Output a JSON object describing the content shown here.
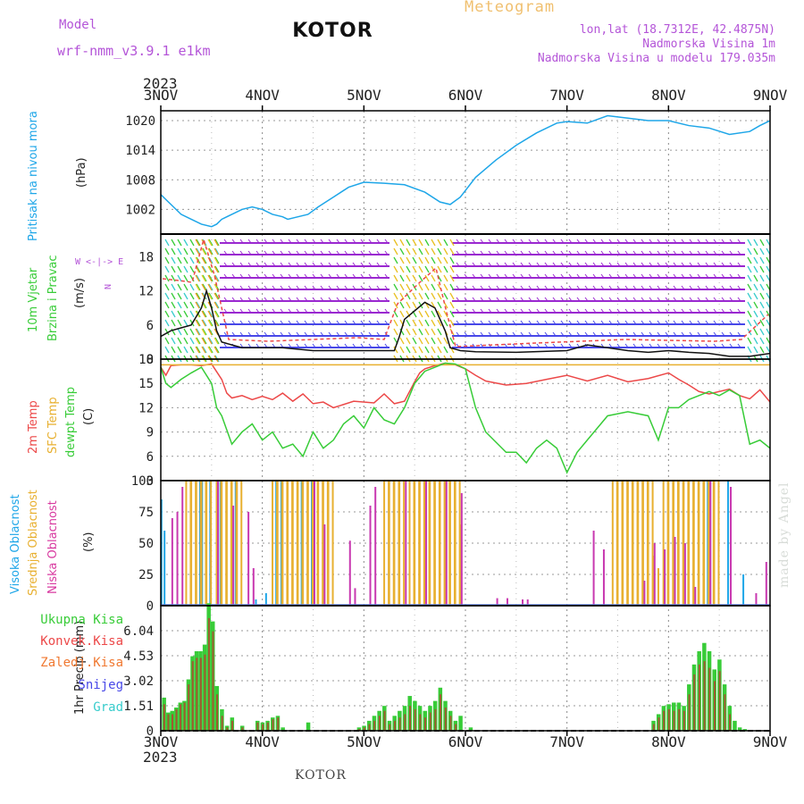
{
  "header": {
    "model_label": "Model",
    "model_name": "wrf-nmm_v3.9.1 e1km",
    "title": "KOTOR",
    "meteogram_label": "Meteogram",
    "lonlat": "lon,lat (18.7312E, 42.4875N)",
    "elevation": "Nadmorska Visina 1m",
    "model_elevation": "Nadmorska Visina u modelu 179.035m",
    "year_top": "2023",
    "year_bottom": "2023",
    "footer_location": "KOTOR",
    "made_by": "made by Angel"
  },
  "time_axis": {
    "labels": [
      "3NOV",
      "4NOV",
      "5NOV",
      "6NOV",
      "7NOV",
      "8NOV",
      "9NOV"
    ]
  },
  "colors": {
    "pressure": "#1ea6e8",
    "temp2m": "#ec4848",
    "sfc": "#e8b030",
    "dewpt": "#38cc38",
    "conv": "#e84848",
    "total": "#38cc38",
    "wind_purple": "#9a28d0",
    "wind_blue": "#4848e8"
  },
  "panel_labels": {
    "pressure": [
      "Pritisak na nivou mora",
      "(hPa)"
    ],
    "wind": [
      "10m Vjetar",
      "Brzina i Pravac",
      "(m/s)"
    ],
    "compass": [
      "N",
      "W  <-|->  E",
      "S"
    ],
    "temp": [
      "2m Temp",
      "SFC Temp",
      "dewpt Temp",
      "(C)"
    ],
    "cloud": [
      "Visoka Oblacnost",
      "Srednja Oblacnost",
      "Niska Oblacnost",
      "(%)"
    ],
    "precip_unit": "1hr Precip (mm)",
    "precip_legend": [
      "Ukupna Kisa",
      "Konvek.Kisa",
      "Zaledj.Kisa",
      "Snijeg",
      "Grad"
    ]
  },
  "chart_data": [
    {
      "type": "line",
      "title": "Pritisak na nivou mora",
      "ylabel": "(hPa)",
      "ylim": [
        997,
        1022
      ],
      "yticks": [
        1002,
        1008,
        1014,
        1020
      ],
      "x_unit": "days from 3NOV 00UTC",
      "xlim": [
        0,
        6
      ],
      "series": [
        {
          "x": [
            0,
            0.1,
            0.2,
            0.3,
            0.4,
            0.5,
            0.55,
            0.6,
            0.7,
            0.8,
            0.9,
            1.0,
            1.1,
            1.2,
            1.25,
            1.35,
            1.45,
            1.55,
            1.7,
            1.85,
            2.0,
            2.2,
            2.4,
            2.6,
            2.75,
            2.85,
            2.95,
            3.1,
            3.3,
            3.5,
            3.7,
            3.9,
            4.0,
            4.2,
            4.4,
            4.6,
            4.8,
            5.0,
            5.2,
            5.4,
            5.6,
            5.8,
            5.9,
            6.0
          ],
          "y": [
            1005,
            1003,
            1001,
            1000,
            999,
            998.5,
            999,
            1000,
            1001,
            1002,
            1002.5,
            1002,
            1001,
            1000.5,
            1000,
            1000.5,
            1001,
            1002.5,
            1004.5,
            1006.5,
            1007.5,
            1007.3,
            1007,
            1005.5,
            1003.5,
            1003,
            1004.5,
            1008.5,
            1012,
            1015,
            1017.5,
            1019.5,
            1019.8,
            1019.5,
            1021,
            1020.5,
            1020,
            1020,
            1019,
            1018.5,
            1017.2,
            1017.8,
            1019,
            1020
          ]
        }
      ]
    },
    {
      "type": "line",
      "title": "10m Vjetar Brzina i Pravac",
      "ylabel": "(m/s)",
      "ylim": [
        0,
        22
      ],
      "yticks": [
        0,
        6,
        12,
        18
      ],
      "series": [
        {
          "name": "speed",
          "x": [
            0,
            0.1,
            0.2,
            0.3,
            0.4,
            0.45,
            0.5,
            0.55,
            0.6,
            0.7,
            0.8,
            1.0,
            1.2,
            1.5,
            2.0,
            2.3,
            2.35,
            2.4,
            2.5,
            2.6,
            2.7,
            2.8,
            2.85,
            2.95,
            3.1,
            3.5,
            4.0,
            4.2,
            4.4,
            4.6,
            4.8,
            5.0,
            5.2,
            5.4,
            5.6,
            5.8,
            6.0
          ],
          "y": [
            4,
            5,
            5.5,
            6,
            9,
            12,
            9,
            5,
            3,
            2.5,
            2,
            2,
            2,
            1.5,
            1.5,
            1.5,
            4,
            7,
            8.5,
            10,
            9,
            5,
            2,
            1.5,
            1.3,
            1.2,
            1.5,
            2.5,
            2,
            1.5,
            1.2,
            1.5,
            1.2,
            1,
            0.5,
            0.5,
            1
          ]
        }
      ]
    },
    {
      "type": "line",
      "title": "2m Temp / SFC Temp / dewpt Temp",
      "ylabel": "(C)",
      "ylim": [
        3,
        18
      ],
      "yticks": [
        3,
        6,
        9,
        12,
        15,
        18
      ],
      "series": [
        {
          "name": "2m Temp",
          "x": [
            0,
            0.05,
            0.1,
            0.2,
            0.3,
            0.4,
            0.5,
            0.6,
            0.65,
            0.7,
            0.8,
            0.9,
            1.0,
            1.1,
            1.2,
            1.3,
            1.4,
            1.5,
            1.6,
            1.7,
            1.9,
            2.1,
            2.2,
            2.3,
            2.4,
            2.5,
            2.55,
            2.6,
            2.7,
            2.8,
            2.9,
            3.0,
            3.1,
            3.2,
            3.4,
            3.6,
            3.8,
            4.0,
            4.2,
            4.4,
            4.6,
            4.8,
            5.0,
            5.1,
            5.2,
            5.3,
            5.4,
            5.6,
            5.7,
            5.8,
            5.9,
            6.0
          ],
          "y": [
            17,
            16,
            17.2,
            17.3,
            17.3,
            17.2,
            17.4,
            15.5,
            13.8,
            13.2,
            13.5,
            13,
            13.4,
            13,
            13.8,
            12.8,
            13.7,
            12.5,
            12.7,
            12,
            12.8,
            12.6,
            13.7,
            12.5,
            12.8,
            15.2,
            16.3,
            16.8,
            17.2,
            17.5,
            17.3,
            16.8,
            16,
            15.3,
            14.8,
            15,
            15.5,
            16,
            15.3,
            16,
            15.2,
            15.6,
            16.3,
            15.5,
            14.8,
            14,
            13.7,
            14.3,
            13.5,
            13.1,
            14.2,
            12.7
          ]
        },
        {
          "name": "SFC Temp",
          "x": [
            0,
            6
          ],
          "y": [
            17.3,
            17.3
          ]
        },
        {
          "name": "dewpt Temp",
          "x": [
            0,
            0.05,
            0.1,
            0.2,
            0.3,
            0.4,
            0.5,
            0.55,
            0.6,
            0.7,
            0.8,
            0.9,
            1.0,
            1.1,
            1.2,
            1.3,
            1.4,
            1.5,
            1.6,
            1.7,
            1.8,
            1.9,
            2.0,
            2.1,
            2.2,
            2.3,
            2.4,
            2.5,
            2.6,
            2.7,
            2.8,
            2.9,
            3.0,
            3.1,
            3.2,
            3.4,
            3.5,
            3.6,
            3.7,
            3.8,
            3.9,
            4.0,
            4.1,
            4.2,
            4.4,
            4.6,
            4.8,
            4.9,
            5.0,
            5.1,
            5.2,
            5.3,
            5.4,
            5.5,
            5.6,
            5.7,
            5.8,
            5.9,
            6.0
          ],
          "y": [
            17,
            15,
            14.5,
            15.5,
            16.3,
            17,
            15,
            12,
            11,
            7.5,
            9,
            10,
            8,
            9,
            7,
            7.5,
            6,
            9,
            7,
            8,
            10,
            11,
            9.5,
            12,
            10.5,
            10,
            12,
            15,
            16.5,
            17,
            17.5,
            17.4,
            16.8,
            12,
            9,
            6.5,
            6.5,
            5.2,
            7,
            8,
            7,
            4,
            6.5,
            8,
            11,
            11.5,
            11,
            8,
            12,
            12,
            13,
            13.5,
            14,
            13.5,
            14.2,
            13.5,
            7.5,
            8,
            7
          ]
        }
      ]
    },
    {
      "type": "bar",
      "title": "Visoka / Srednja / Niska Oblacnost",
      "ylabel": "(%)",
      "ylim": [
        0,
        100
      ],
      "yticks": [
        0,
        25,
        50,
        75,
        100
      ],
      "series": [
        {
          "name": "Visoka Oblacnost",
          "x": [
            0.02,
            0.05,
            0.4,
            0.42,
            0.5,
            0.6,
            0.75,
            0.95,
            1.05,
            1.15,
            1.2,
            1.4,
            1.5,
            5.4,
            5.6,
            5.75
          ],
          "y": [
            85,
            60,
            100,
            100,
            100,
            100,
            100,
            5,
            10,
            100,
            100,
            100,
            100,
            100,
            100,
            25
          ]
        },
        {
          "name": "Srednja Oblacnost",
          "x": [
            0.25,
            0.3,
            0.35,
            0.4,
            0.45,
            0.55,
            0.6,
            0.65,
            0.7,
            0.75,
            1.1,
            1.15,
            1.2,
            1.25,
            1.3,
            1.35,
            1.4,
            1.45,
            1.5,
            1.55,
            1.6,
            1.65,
            2.2,
            2.25,
            2.3,
            2.35,
            2.45,
            2.5,
            2.55,
            2.6,
            2.65,
            2.7,
            2.75,
            2.8,
            2.85,
            2.9,
            2.95,
            4.45,
            4.5,
            4.55,
            4.6,
            4.65,
            4.7,
            4.75,
            4.8,
            4.85,
            4.9,
            4.95,
            5.0,
            5.05,
            5.1,
            5.15,
            5.2,
            5.25,
            5.3,
            5.35,
            5.4,
            5.45
          ],
          "y": [
            100,
            100,
            100,
            100,
            100,
            100,
            100,
            100,
            100,
            100,
            100,
            100,
            100,
            100,
            100,
            100,
            100,
            100,
            100,
            100,
            100,
            100,
            100,
            100,
            100,
            100,
            100,
            100,
            100,
            100,
            100,
            100,
            100,
            100,
            100,
            100,
            65,
            100,
            100,
            100,
            100,
            100,
            100,
            100,
            100,
            40,
            30,
            100,
            100,
            100,
            100,
            100,
            100,
            100,
            100,
            100,
            100,
            100
          ]
        },
        {
          "name": "Niska Oblacnost",
          "x": [
            0.1,
            0.15,
            0.2,
            0.55,
            0.7,
            0.85,
            0.9,
            1.5,
            1.6,
            1.85,
            1.9,
            2.05,
            2.1,
            2.4,
            2.6,
            2.8,
            2.95,
            3.3,
            3.4,
            3.55,
            3.6,
            4.25,
            4.35,
            4.75,
            4.85,
            4.95,
            5.05,
            5.15,
            5.25,
            5.4,
            5.6,
            5.85,
            5.95
          ],
          "y": [
            70,
            75,
            95,
            100,
            80,
            75,
            30,
            100,
            65,
            52,
            14,
            80,
            95,
            100,
            100,
            100,
            90,
            6,
            6,
            5,
            5,
            60,
            45,
            20,
            50,
            45,
            55,
            50,
            15,
            100,
            95,
            10,
            35
          ]
        }
      ]
    },
    {
      "type": "bar",
      "title": "1hr Precip",
      "ylabel": "1hr Precip (mm)",
      "ylim": [
        0,
        7.55
      ],
      "yticks": [
        0,
        1.51,
        3.02,
        4.53,
        6.04
      ],
      "series": [
        {
          "name": "Ukupna Kisa",
          "x": [
            0.03,
            0.07,
            0.11,
            0.15,
            0.19,
            0.23,
            0.27,
            0.31,
            0.35,
            0.39,
            0.43,
            0.47,
            0.51,
            0.55,
            0.6,
            0.65,
            0.7,
            0.8,
            0.95,
            1.0,
            1.05,
            1.1,
            1.15,
            1.2,
            1.45,
            1.95,
            2.0,
            2.05,
            2.1,
            2.15,
            2.2,
            2.25,
            2.3,
            2.35,
            2.4,
            2.45,
            2.5,
            2.55,
            2.6,
            2.65,
            2.7,
            2.75,
            2.8,
            2.85,
            2.9,
            2.95,
            3.05,
            4.85,
            4.9,
            4.95,
            5.0,
            5.05,
            5.1,
            5.15,
            5.2,
            5.25,
            5.3,
            5.35,
            5.4,
            5.45,
            5.5,
            5.55,
            5.6,
            5.65,
            5.7,
            5.75
          ],
          "y": [
            2,
            1.1,
            1.2,
            1.4,
            1.7,
            1.8,
            3.1,
            4.5,
            4.8,
            4.8,
            5.2,
            7.7,
            6.6,
            2.7,
            1.3,
            0.3,
            0.8,
            0.3,
            0.6,
            0.5,
            0.6,
            0.8,
            0.9,
            0.2,
            0.5,
            0.2,
            0.3,
            0.6,
            0.9,
            1.2,
            1.5,
            0.6,
            0.9,
            1.2,
            1.5,
            2.1,
            1.8,
            1.5,
            1.2,
            1.5,
            1.8,
            2.6,
            1.8,
            1.2,
            0.6,
            0.9,
            0.2,
            0.6,
            1.0,
            1.5,
            1.6,
            1.7,
            1.7,
            1.5,
            2.8,
            4.0,
            4.8,
            5.3,
            4.8,
            3.7,
            4.3,
            2.8,
            1.5,
            0.6,
            0.2,
            0.1
          ]
        },
        {
          "name": "Konvek.Kisa",
          "x": [
            0.03,
            0.07,
            0.11,
            0.15,
            0.19,
            0.23,
            0.27,
            0.31,
            0.35,
            0.39,
            0.43,
            0.47,
            0.51,
            0.55,
            0.6,
            0.65,
            0.7,
            0.8,
            0.95,
            1.0,
            1.05,
            1.1,
            1.15,
            1.95,
            2.0,
            2.05,
            2.1,
            2.15,
            2.2,
            2.25,
            2.3,
            2.35,
            2.4,
            2.45,
            2.5,
            2.55,
            2.6,
            2.65,
            2.7,
            2.75,
            2.8,
            2.85,
            2.9,
            4.85,
            4.9,
            4.95,
            5.0,
            5.05,
            5.1,
            5.15,
            5.2,
            5.25,
            5.3,
            5.35,
            5.4,
            5.45,
            5.5,
            5.55,
            5.6
          ],
          "y": [
            1.6,
            1.0,
            1.0,
            1.3,
            1.6,
            1.7,
            2.8,
            4.2,
            4.4,
            4.4,
            4.6,
            6.8,
            6.0,
            2.2,
            0.9,
            0.2,
            0.6,
            0.2,
            0.5,
            0.4,
            0.5,
            0.7,
            0.8,
            0.1,
            0.2,
            0.4,
            0.6,
            0.9,
            1.2,
            0.4,
            0.6,
            0.8,
            1.0,
            1.5,
            1.3,
            1.0,
            0.8,
            1.1,
            1.3,
            2.2,
            1.4,
            0.9,
            0.4,
            0.4,
            0.8,
            1.2,
            1.3,
            1.2,
            1.3,
            1.2,
            2.2,
            3.4,
            4.0,
            4.2,
            3.8,
            3.0,
            3.6,
            2.2,
            1.0
          ]
        }
      ]
    }
  ]
}
